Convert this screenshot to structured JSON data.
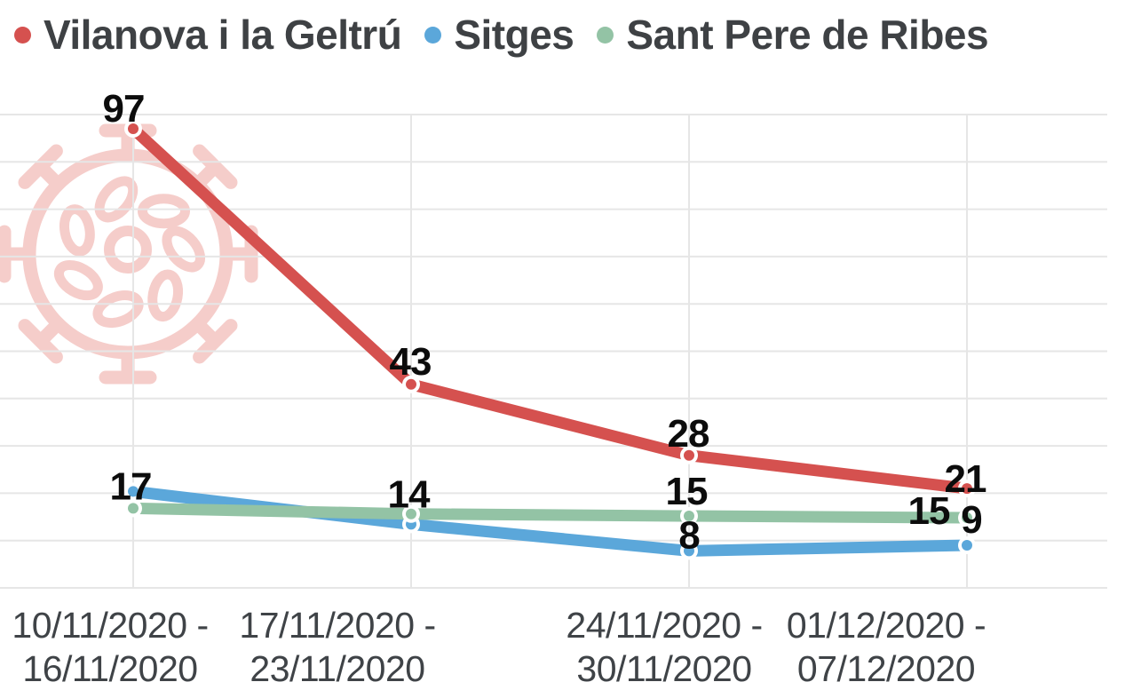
{
  "legend": {
    "items": [
      {
        "label": "Vilanova i la Geltrú",
        "color": "#d5514f"
      },
      {
        "label": "Sitges",
        "color": "#5ba7da"
      },
      {
        "label": "Sant Pere de Ribes",
        "color": "#93c3a5"
      }
    ]
  },
  "chart_data": {
    "type": "line",
    "title": "",
    "x_labels": [
      {
        "line1": "10/11/2020 -",
        "line2": "16/11/2020"
      },
      {
        "line1": "17/11/2020 -",
        "line2": "23/11/2020"
      },
      {
        "line1": "24/11/2020 -",
        "line2": "30/11/2020"
      },
      {
        "line1": "01/12/2020 -",
        "line2": "07/12/2020"
      }
    ],
    "series": [
      {
        "name": "Vilanova i la Geltrú",
        "color": "#d5514f",
        "values": [
          97,
          43,
          28,
          21
        ],
        "point_labels": [
          "97",
          "43",
          "28",
          "21"
        ]
      },
      {
        "name": "Sitges",
        "color": "#5ba7da",
        "values": [
          17,
          14,
          8,
          9
        ],
        "point_labels": [
          "17",
          "14",
          "8",
          "9"
        ]
      },
      {
        "name": "Sant Pere de Ribes",
        "color": "#93c3a5",
        "values": [
          17,
          16,
          15,
          15
        ],
        "point_labels": [
          "",
          "",
          "15",
          "15"
        ]
      }
    ],
    "ylim": [
      0,
      100
    ],
    "grid": true,
    "gridline_step": 10,
    "legend_position": "top",
    "point_label_color": "#0c0c0c",
    "gridline_color": "#e6e6e6",
    "axis_label_color": "#3f4347",
    "watermark": "coronavirus-icon",
    "watermark_color": "#f5cdca"
  }
}
